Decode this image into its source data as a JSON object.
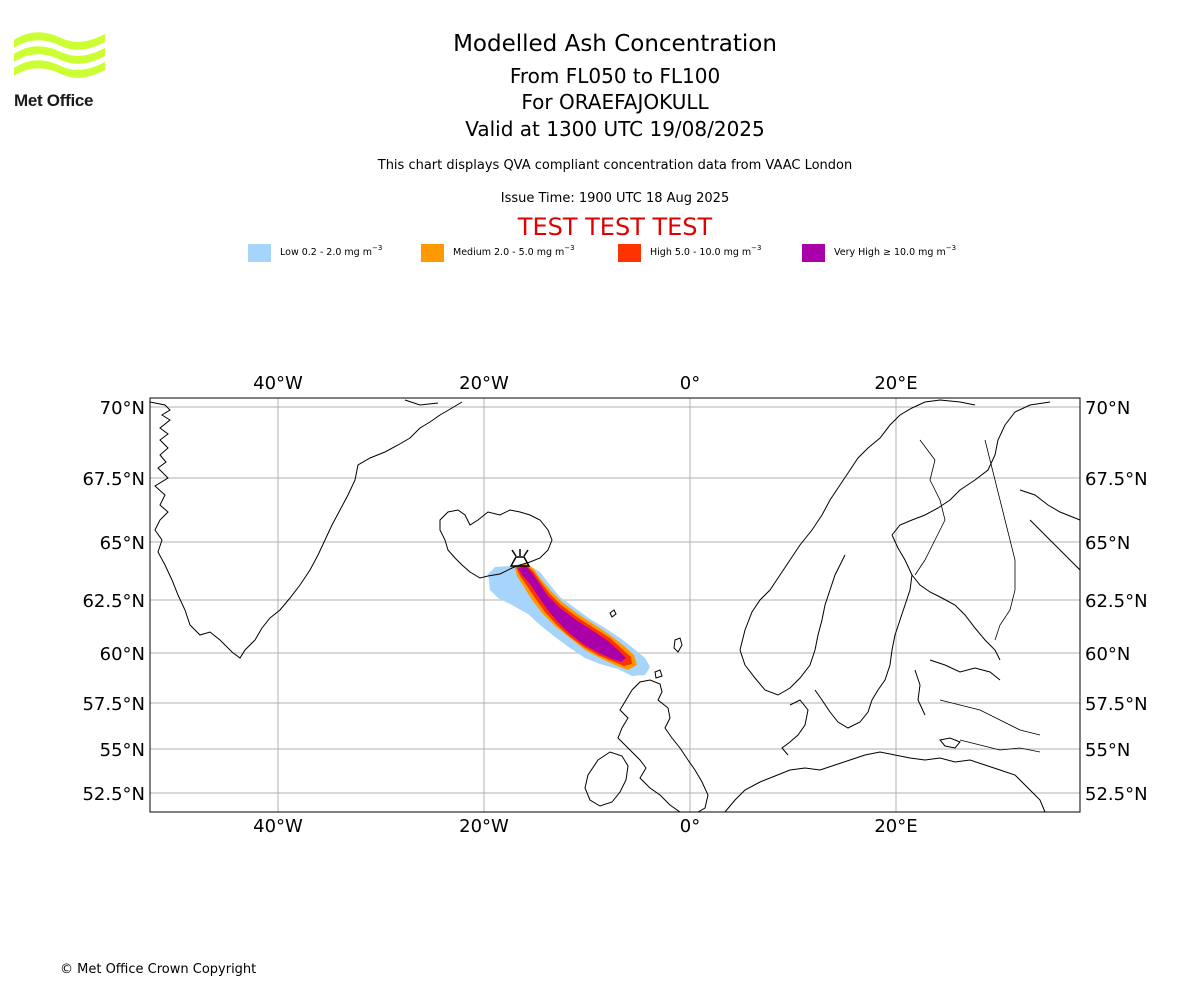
{
  "logo": {
    "text": "Met Office",
    "color": "#ccff33"
  },
  "header": {
    "title": "Modelled Ash Concentration",
    "levels": "From FL050 to FL100",
    "volcano": "For ORAEFAJOKULL",
    "valid": "Valid at 1300 UTC 19/08/2025",
    "subtitle": "This chart displays QVA compliant concentration data from VAAC London",
    "issue_time": "Issue Time: 1900 UTC 18 Aug 2025",
    "test_banner": "TEST TEST TEST"
  },
  "legend": [
    {
      "label": "Low 0.2 - 2.0 mg m",
      "sup": "−3",
      "color": "#a6d4fb"
    },
    {
      "label": "Medium 2.0 - 5.0 mg m",
      "sup": "−3",
      "color": "#ff9900"
    },
    {
      "label": "High 5.0 - 10.0 mg m",
      "sup": "−3",
      "color": "#ff3300"
    },
    {
      "label": "Very High  ≥  10.0 mg m",
      "sup": "−3",
      "color": "#aa00aa"
    }
  ],
  "map": {
    "lon_range": [
      -52.5,
      37.5
    ],
    "lat_range": [
      51.5,
      70.5
    ],
    "lon_ticks": [
      "40°W",
      "20°W",
      "0°",
      "20°E"
    ],
    "lat_ticks": [
      "70°N",
      "67.5°N",
      "65°N",
      "62.5°N",
      "60°N",
      "57.5°N",
      "55°N",
      "52.5°N"
    ],
    "volcano_marker": "volcano-symbol"
  },
  "footer": {
    "copyright": "© Met Office Crown Copyright"
  }
}
